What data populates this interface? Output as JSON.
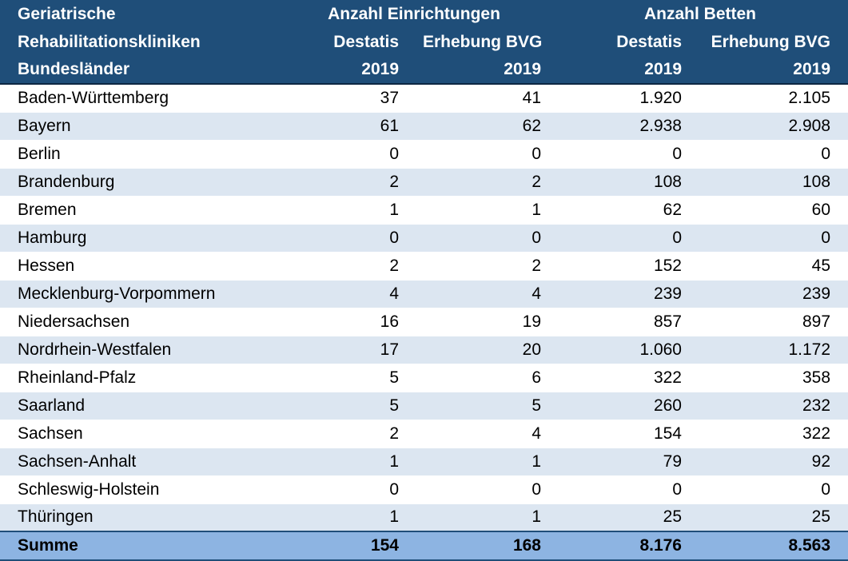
{
  "header": {
    "row1": {
      "col1": "Geriatrische",
      "group_einrichtungen": "Anzahl Einrichtungen",
      "group_betten": "Anzahl Betten"
    },
    "row2": {
      "col1": "Rehabilitationskliniken",
      "destatis": "Destatis",
      "erhebung": "Erhebung BVG"
    },
    "row3": {
      "col1": "Bundesländer",
      "year": "2019"
    }
  },
  "rows": [
    {
      "land": "Baden-Württemberg",
      "e_destatis": "37",
      "e_bvg": "41",
      "b_destatis": "1.920",
      "b_bvg": "2.105"
    },
    {
      "land": "Bayern",
      "e_destatis": "61",
      "e_bvg": "62",
      "b_destatis": "2.938",
      "b_bvg": "2.908"
    },
    {
      "land": "Berlin",
      "e_destatis": "0",
      "e_bvg": "0",
      "b_destatis": "0",
      "b_bvg": "0"
    },
    {
      "land": "Brandenburg",
      "e_destatis": "2",
      "e_bvg": "2",
      "b_destatis": "108",
      "b_bvg": "108"
    },
    {
      "land": "Bremen",
      "e_destatis": "1",
      "e_bvg": "1",
      "b_destatis": "62",
      "b_bvg": "60"
    },
    {
      "land": "Hamburg",
      "e_destatis": "0",
      "e_bvg": "0",
      "b_destatis": "0",
      "b_bvg": "0"
    },
    {
      "land": "Hessen",
      "e_destatis": "2",
      "e_bvg": "2",
      "b_destatis": "152",
      "b_bvg": "45"
    },
    {
      "land": "Mecklenburg-Vorpommern",
      "e_destatis": "4",
      "e_bvg": "4",
      "b_destatis": "239",
      "b_bvg": "239"
    },
    {
      "land": "Niedersachsen",
      "e_destatis": "16",
      "e_bvg": "19",
      "b_destatis": "857",
      "b_bvg": "897"
    },
    {
      "land": "Nordrhein-Westfalen",
      "e_destatis": "17",
      "e_bvg": "20",
      "b_destatis": "1.060",
      "b_bvg": "1.172"
    },
    {
      "land": "Rheinland-Pfalz",
      "e_destatis": "5",
      "e_bvg": "6",
      "b_destatis": "322",
      "b_bvg": "358"
    },
    {
      "land": "Saarland",
      "e_destatis": "5",
      "e_bvg": "5",
      "b_destatis": "260",
      "b_bvg": "232"
    },
    {
      "land": "Sachsen",
      "e_destatis": "2",
      "e_bvg": "4",
      "b_destatis": "154",
      "b_bvg": "322"
    },
    {
      "land": "Sachsen-Anhalt",
      "e_destatis": "1",
      "e_bvg": "1",
      "b_destatis": "79",
      "b_bvg": "92"
    },
    {
      "land": "Schleswig-Holstein",
      "e_destatis": "0",
      "e_bvg": "0",
      "b_destatis": "0",
      "b_bvg": "0"
    },
    {
      "land": "Thüringen",
      "e_destatis": "1",
      "e_bvg": "1",
      "b_destatis": "25",
      "b_bvg": "25"
    }
  ],
  "total": {
    "label": "Summe",
    "e_destatis": "154",
    "e_bvg": "168",
    "b_destatis": "8.176",
    "b_bvg": "8.563"
  },
  "colors": {
    "header_bg": "#1f4e79",
    "stripe_bg": "#dce6f1",
    "total_bg": "#8db4e2"
  }
}
